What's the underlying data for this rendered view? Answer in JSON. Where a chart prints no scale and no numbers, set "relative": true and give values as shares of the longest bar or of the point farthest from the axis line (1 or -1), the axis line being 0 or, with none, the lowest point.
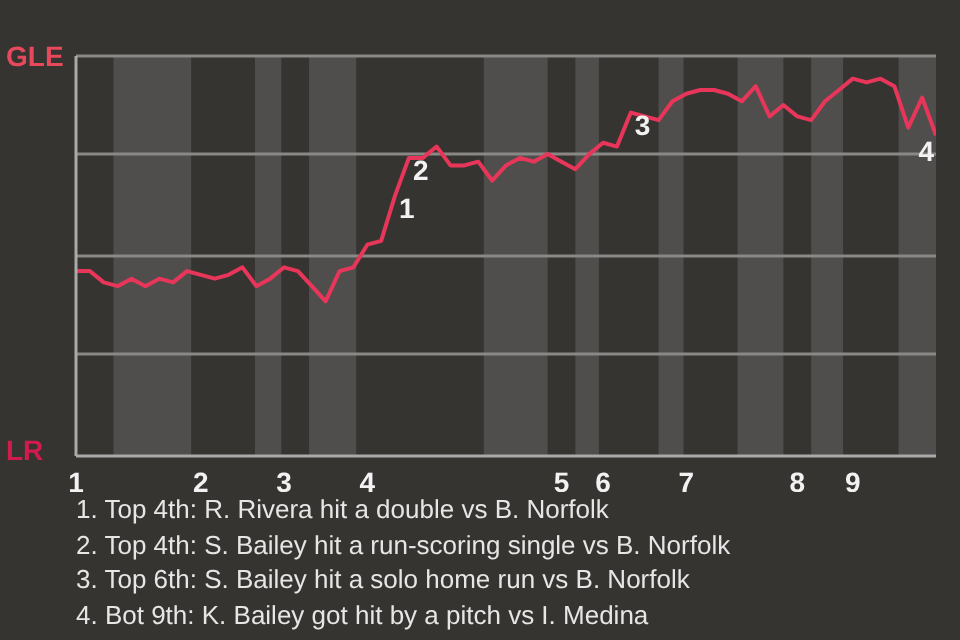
{
  "chart_data": {
    "type": "line",
    "relative": true,
    "categories": [
      "1",
      null,
      null,
      null,
      null,
      null,
      null,
      null,
      null,
      "2",
      null,
      null,
      null,
      null,
      null,
      "3",
      null,
      null,
      null,
      null,
      null,
      "4",
      null,
      null,
      null,
      null,
      null,
      null,
      null,
      null,
      null,
      null,
      null,
      null,
      null,
      "5",
      null,
      null,
      "6",
      null,
      null,
      null,
      null,
      null,
      "7",
      null,
      null,
      null,
      null,
      null,
      null,
      null,
      "8",
      null,
      null,
      null,
      "9",
      null,
      null,
      null,
      null,
      null,
      null
    ],
    "series": [
      {
        "color": "#e8365a",
        "values": [
          0.49,
          0.49,
          0.46,
          0.45,
          0.47,
          0.45,
          0.47,
          0.46,
          0.49,
          0.48,
          0.47,
          0.48,
          0.5,
          0.45,
          0.47,
          0.5,
          0.49,
          0.45,
          0.41,
          0.49,
          0.5,
          0.56,
          0.57,
          0.69,
          0.79,
          0.79,
          0.82,
          0.77,
          0.77,
          0.78,
          0.73,
          0.77,
          0.79,
          0.78,
          0.8,
          0.78,
          0.76,
          0.8,
          0.83,
          0.82,
          0.91,
          0.9,
          0.89,
          0.94,
          0.96,
          0.97,
          0.97,
          0.96,
          0.94,
          0.98,
          0.9,
          0.93,
          0.9,
          0.89,
          0.94,
          0.97,
          1,
          0.99,
          1,
          0.98,
          0.87,
          0.95,
          0.85
        ]
      }
    ],
    "ref_lines": [
      {
        "axis": "y",
        "value": 0.27,
        "color": "#8a8886"
      },
      {
        "axis": "y",
        "value": 0.53,
        "color": "#8a8886"
      },
      {
        "axis": "y",
        "value": 0.8,
        "color": "#8a8886"
      },
      {
        "axis": "y",
        "value": 1.06,
        "color": "#8a8886"
      }
    ],
    "annotations": [
      {
        "text": "1",
        "y": 0.69
      },
      {
        "text": "2",
        "y": 0.79
      },
      {
        "text": "3",
        "y": 0.91
      },
      {
        "text": "4",
        "y": 0.85
      },
      "GLE",
      "LR",
      "1. Top 4th: R. Rivera hit a double vs B. Norfolk",
      "2. Top 4th: S. Bailey hit a run-scoring single vs B. Norfolk",
      "3. Top 6th: S. Bailey hit a solo home run vs B. Norfolk",
      "4. Bot 9th: K. Bailey got hit by a pitch vs I. Medina"
    ]
  }
}
